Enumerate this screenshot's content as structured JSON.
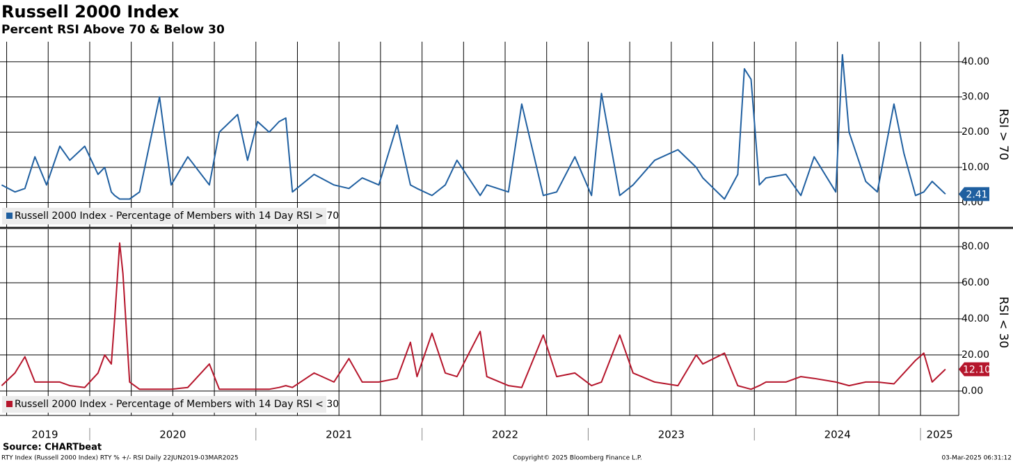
{
  "header": {
    "title": "Russell 2000 Index",
    "subtitle": "Percent RSI Above 70 & Below 30",
    "source": "Source: CHARTbeat",
    "footer_left": "RTY Index (Russell 2000 Index) RTY % +/- RSI  Daily 22JUN2019-03MAR2025",
    "footer_center": "Copyright© 2025 Bloomberg Finance L.P.",
    "footer_right": "03-Mar-2025 06:31:12"
  },
  "chart_data": [
    {
      "type": "line",
      "y_label": "RSI > 70",
      "grid": true,
      "x": [
        2019.47,
        2019.55,
        2019.61,
        2019.67,
        2019.74,
        2019.82,
        2019.88,
        2019.97,
        2020.05,
        2020.09,
        2020.13,
        2020.15,
        2020.18,
        2020.2,
        2020.24,
        2020.3,
        2020.42,
        2020.49,
        2020.59,
        2020.72,
        2020.78,
        2020.89,
        2020.95,
        2021.01,
        2021.08,
        2021.14,
        2021.18,
        2021.22,
        2021.35,
        2021.47,
        2021.56,
        2021.64,
        2021.74,
        2021.85,
        2021.93,
        2021.97,
        2022.06,
        2022.14,
        2022.21,
        2022.35,
        2022.39,
        2022.52,
        2022.6,
        2022.73,
        2022.81,
        2022.92,
        2023.02,
        2023.08,
        2023.19,
        2023.27,
        2023.4,
        2023.54,
        2023.65,
        2023.69,
        2023.82,
        2023.9,
        2023.94,
        2023.98,
        2024.03,
        2024.07,
        2024.19,
        2024.28,
        2024.36,
        2024.49,
        2024.53,
        2024.57,
        2024.67,
        2024.74,
        2024.84,
        2024.9,
        2024.97,
        2025.02,
        2025.07,
        2025.15
      ],
      "series": [
        {
          "name": "Russell 2000 Index - Percentage of Members with 14 Day RSI > 70",
          "color": "#1f5fa0",
          "values": [
            5,
            3,
            4,
            13,
            5,
            16,
            12,
            16,
            8,
            10,
            3,
            2,
            1,
            1,
            1,
            3,
            30,
            5,
            13,
            5,
            20,
            25,
            12,
            23,
            20,
            23,
            24,
            3,
            8,
            5,
            4,
            7,
            5,
            22,
            5,
            4,
            2,
            5,
            12,
            2,
            5,
            3,
            28,
            2,
            3,
            13,
            2,
            31,
            2,
            5,
            12,
            15,
            10,
            7,
            1,
            8,
            38,
            35,
            5,
            7,
            8,
            2,
            13,
            3,
            42,
            20,
            6,
            3,
            28,
            14,
            2,
            3,
            6,
            2.41
          ]
        }
      ],
      "xlim": [
        2019.46,
        2025.23
      ],
      "xticks": [
        2019,
        2020,
        2021,
        2022,
        2023,
        2024,
        2025
      ],
      "ylim": [
        -7,
        45.7
      ],
      "yticks": [
        {
          "value": 0,
          "label": "0.00"
        },
        {
          "value": 10,
          "label": "10.00"
        },
        {
          "value": 20,
          "label": "20.00"
        },
        {
          "value": 30,
          "label": "30.00"
        },
        {
          "value": 40,
          "label": "40.00"
        }
      ]
    },
    {
      "type": "line",
      "y_label": "RSI < 30",
      "grid": true,
      "x": [
        2019.47,
        2019.55,
        2019.61,
        2019.67,
        2019.74,
        2019.82,
        2019.88,
        2019.97,
        2020.05,
        2020.09,
        2020.13,
        2020.15,
        2020.18,
        2020.2,
        2020.24,
        2020.3,
        2020.42,
        2020.49,
        2020.59,
        2020.72,
        2020.78,
        2020.89,
        2020.95,
        2021.01,
        2021.08,
        2021.14,
        2021.18,
        2021.22,
        2021.35,
        2021.47,
        2021.56,
        2021.64,
        2021.74,
        2021.85,
        2021.93,
        2021.97,
        2022.06,
        2022.14,
        2022.21,
        2022.35,
        2022.39,
        2022.52,
        2022.6,
        2022.73,
        2022.81,
        2022.92,
        2023.02,
        2023.08,
        2023.19,
        2023.27,
        2023.4,
        2023.54,
        2023.65,
        2023.69,
        2023.82,
        2023.9,
        2023.94,
        2023.98,
        2024.03,
        2024.07,
        2024.19,
        2024.28,
        2024.36,
        2024.49,
        2024.53,
        2024.57,
        2024.67,
        2024.74,
        2024.84,
        2024.9,
        2024.97,
        2025.02,
        2025.07,
        2025.15
      ],
      "series": [
        {
          "name": "Russell 2000 Index - Percentage of Members with 14 Day RSI < 30",
          "color": "#b5152b",
          "values": [
            3,
            10,
            19,
            5,
            5,
            5,
            3,
            2,
            10,
            20,
            15,
            40,
            82,
            65,
            5,
            1,
            1,
            1,
            2,
            15,
            1,
            1,
            1,
            1,
            1,
            2,
            3,
            2,
            10,
            5,
            18,
            5,
            5,
            7,
            27,
            8,
            32,
            10,
            8,
            33,
            8,
            3,
            2,
            31,
            8,
            10,
            3,
            5,
            31,
            10,
            5,
            3,
            20,
            15,
            21,
            3,
            2,
            1,
            3,
            5,
            5,
            8,
            7,
            5,
            4,
            3,
            5,
            5,
            4,
            10,
            17,
            21,
            5,
            12.1
          ],
          "value_labels": [
            null,
            null,
            null,
            null,
            null,
            null,
            null,
            null,
            null,
            null,
            null,
            null,
            null,
            null,
            null,
            null,
            null,
            null,
            null,
            null,
            null,
            null,
            null,
            null,
            null,
            null,
            null,
            null,
            null,
            null,
            null,
            null,
            null,
            null,
            null,
            null,
            null,
            null,
            null,
            null,
            null,
            null,
            null,
            null,
            null,
            null,
            null,
            null,
            null,
            null,
            null,
            null,
            null,
            null,
            null,
            null,
            null,
            null,
            null,
            null,
            null,
            null,
            null,
            null,
            null,
            null,
            null,
            null,
            null,
            null,
            null,
            null,
            null,
            "12.10"
          ]
        }
      ],
      "xlim": [
        2019.46,
        2025.23
      ],
      "xticks": [
        2019,
        2020,
        2021,
        2022,
        2023,
        2024,
        2025
      ],
      "ylim": [
        -13.5,
        89.6
      ],
      "yticks": [
        {
          "value": 0,
          "label": "0.00"
        },
        {
          "value": 20,
          "label": "20.00"
        },
        {
          "value": 40,
          "label": "40.00"
        },
        {
          "value": 60,
          "label": "60.00"
        },
        {
          "value": 80,
          "label": "80.00"
        }
      ]
    }
  ]
}
